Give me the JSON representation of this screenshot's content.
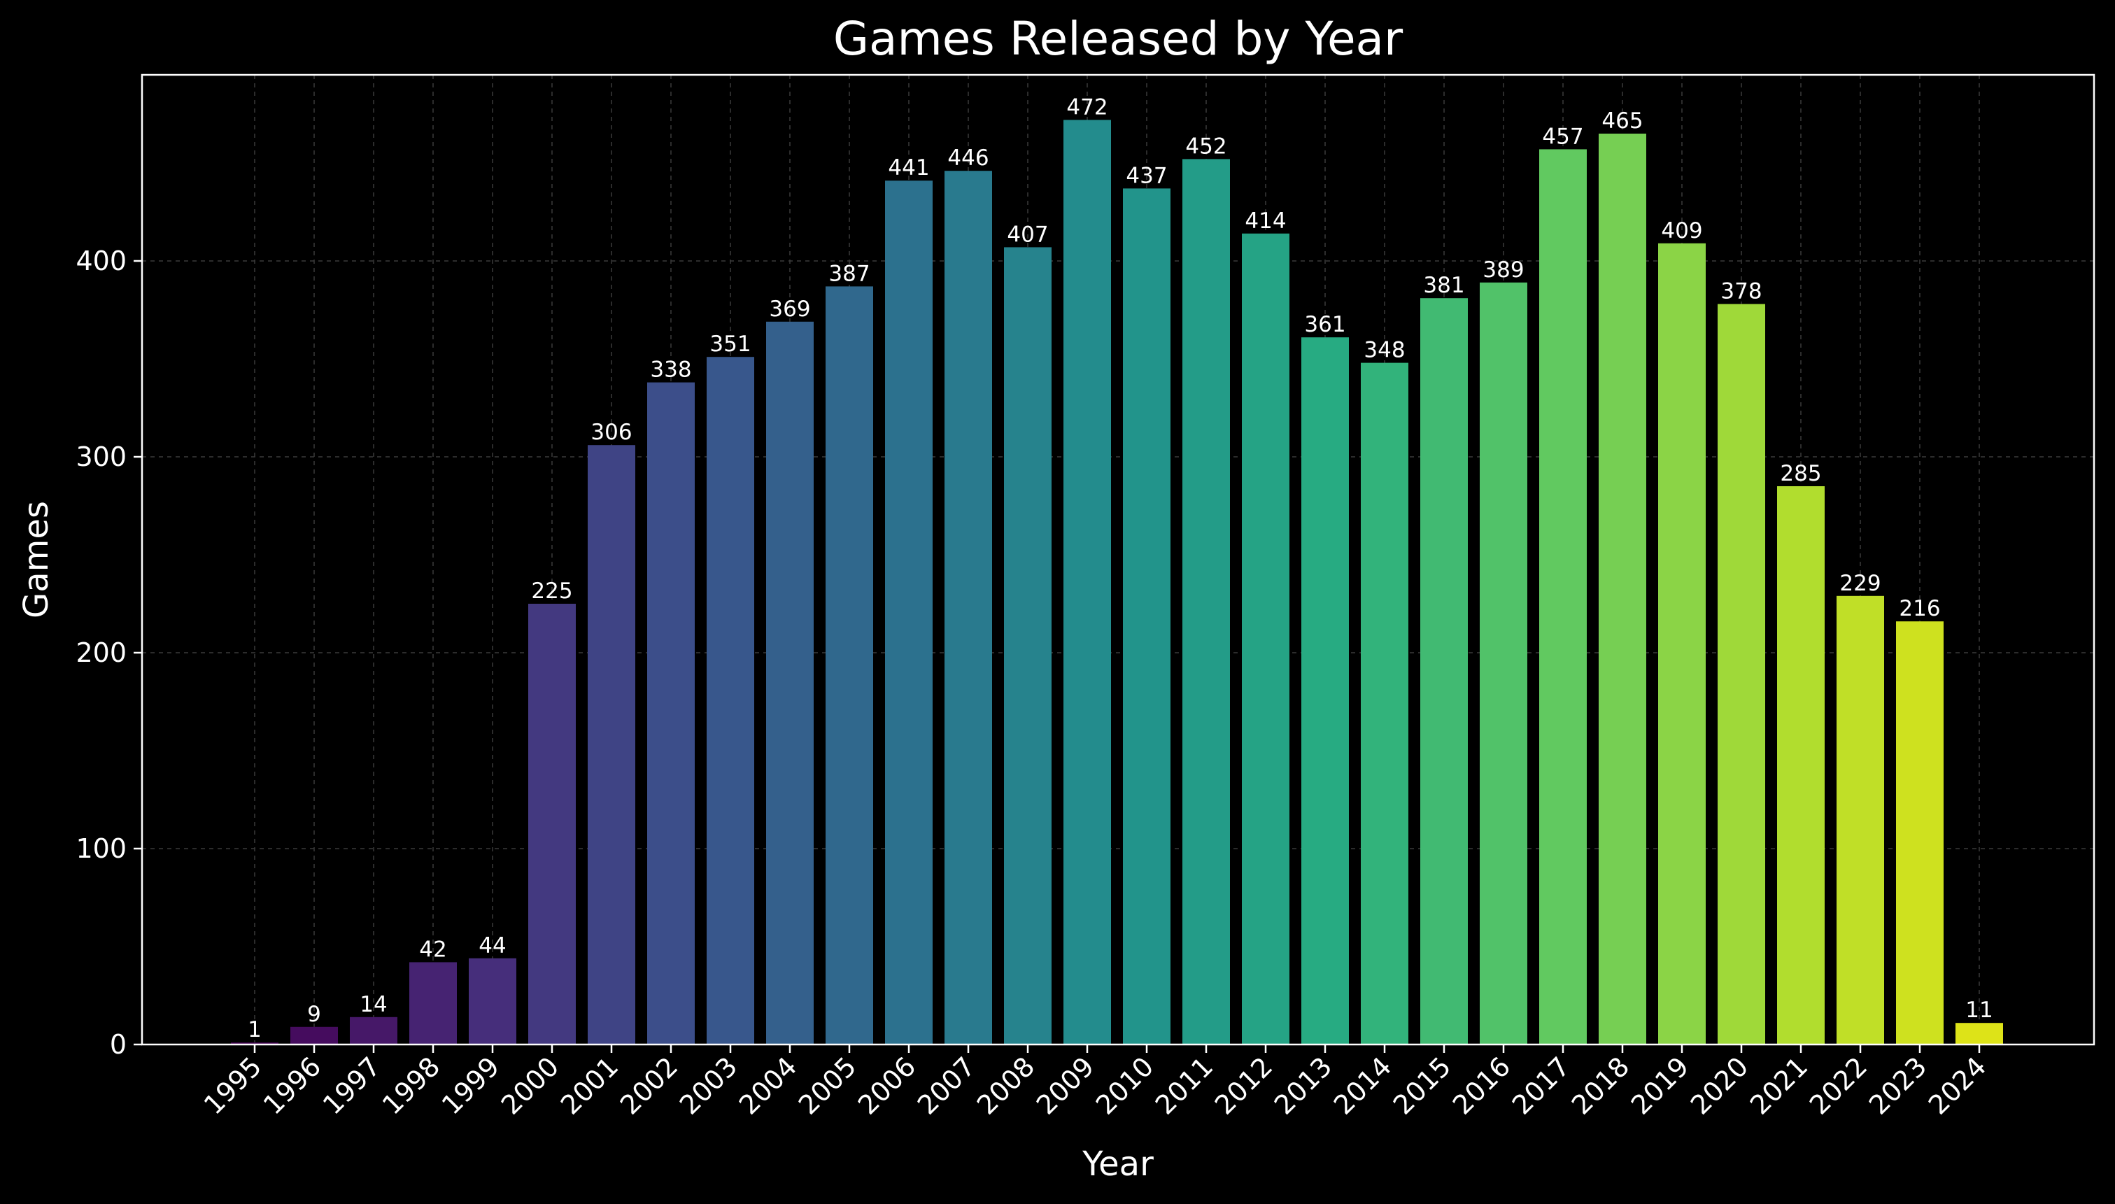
{
  "chart_data": {
    "type": "bar",
    "title": "Games Released by Year",
    "xlabel": "Year",
    "ylabel": "Games",
    "categories": [
      "1995",
      "1996",
      "1997",
      "1998",
      "1999",
      "2000",
      "2001",
      "2002",
      "2003",
      "2004",
      "2005",
      "2006",
      "2007",
      "2008",
      "2009",
      "2010",
      "2011",
      "2012",
      "2013",
      "2014",
      "2015",
      "2016",
      "2017",
      "2018",
      "2019",
      "2020",
      "2021",
      "2022",
      "2023",
      "2024"
    ],
    "values": [
      1,
      9,
      14,
      42,
      44,
      225,
      306,
      338,
      351,
      369,
      387,
      441,
      446,
      407,
      472,
      437,
      452,
      414,
      361,
      348,
      381,
      389,
      457,
      465,
      409,
      378,
      285,
      229,
      216,
      11
    ],
    "yticks": [
      0,
      100,
      200,
      300,
      400
    ],
    "ylim": [
      0,
      495
    ],
    "grid": true,
    "colormap": "viridis",
    "colors": {
      "background": "#000000",
      "axes": "#ffffff",
      "text": "#ffffff",
      "grid": "#3a3a3a",
      "bar_start": "#440154",
      "bar_end": "#dde318"
    }
  }
}
